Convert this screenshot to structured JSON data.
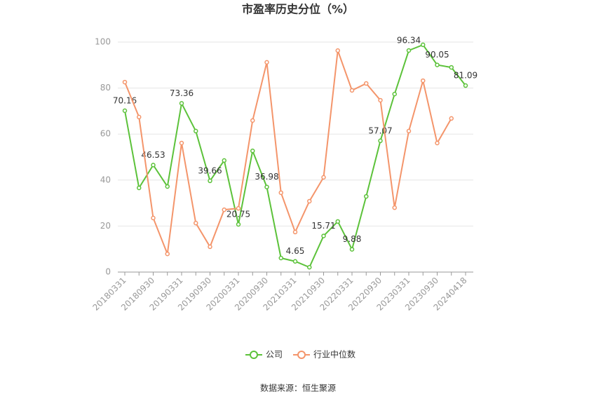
{
  "chart_data": {
    "type": "line",
    "title": "市盈率历史分位（%）",
    "categories": [
      "20180331",
      null,
      "20180930",
      null,
      "20190331",
      null,
      "20190930",
      null,
      "20200331",
      null,
      "20200930",
      null,
      "20210331",
      null,
      "20210930",
      null,
      "20220331",
      null,
      "20220930",
      null,
      "20230331",
      null,
      "20230930",
      null,
      "20240418"
    ],
    "series": [
      {
        "name": "公司",
        "color": "#5cc23a",
        "values": [
          70.16,
          36.6,
          46.53,
          37.2,
          73.36,
          61.3,
          39.66,
          48.5,
          20.75,
          52.7,
          36.98,
          6.1,
          4.65,
          2.1,
          15.71,
          22.0,
          9.88,
          32.9,
          57.07,
          77.4,
          96.34,
          98.8,
          90.05,
          89.0,
          81.09
        ],
        "value_labels": [
          "70.16",
          null,
          "46.53",
          null,
          "73.36",
          null,
          "39.66",
          null,
          "20.75",
          null,
          "36.98",
          null,
          "4.65",
          null,
          "15.71",
          null,
          "9.88",
          null,
          "57.07",
          null,
          "96.34",
          null,
          "90.05",
          null,
          "81.09"
        ]
      },
      {
        "name": "行业中位数",
        "color": "#f4956b",
        "values": [
          82.6,
          67.4,
          23.5,
          7.9,
          56.1,
          21.3,
          11.0,
          27.1,
          27.7,
          65.9,
          91.2,
          34.5,
          17.4,
          30.8,
          41.2,
          96.3,
          79.0,
          82.0,
          74.7,
          28.0,
          61.3,
          83.2,
          56.1,
          66.8,
          null
        ]
      }
    ],
    "ylim": [
      0,
      100
    ],
    "yticks": [
      0,
      20,
      40,
      60,
      80,
      100
    ],
    "grid": true,
    "legend": "bottom",
    "source": "数据来源：恒生聚源"
  }
}
